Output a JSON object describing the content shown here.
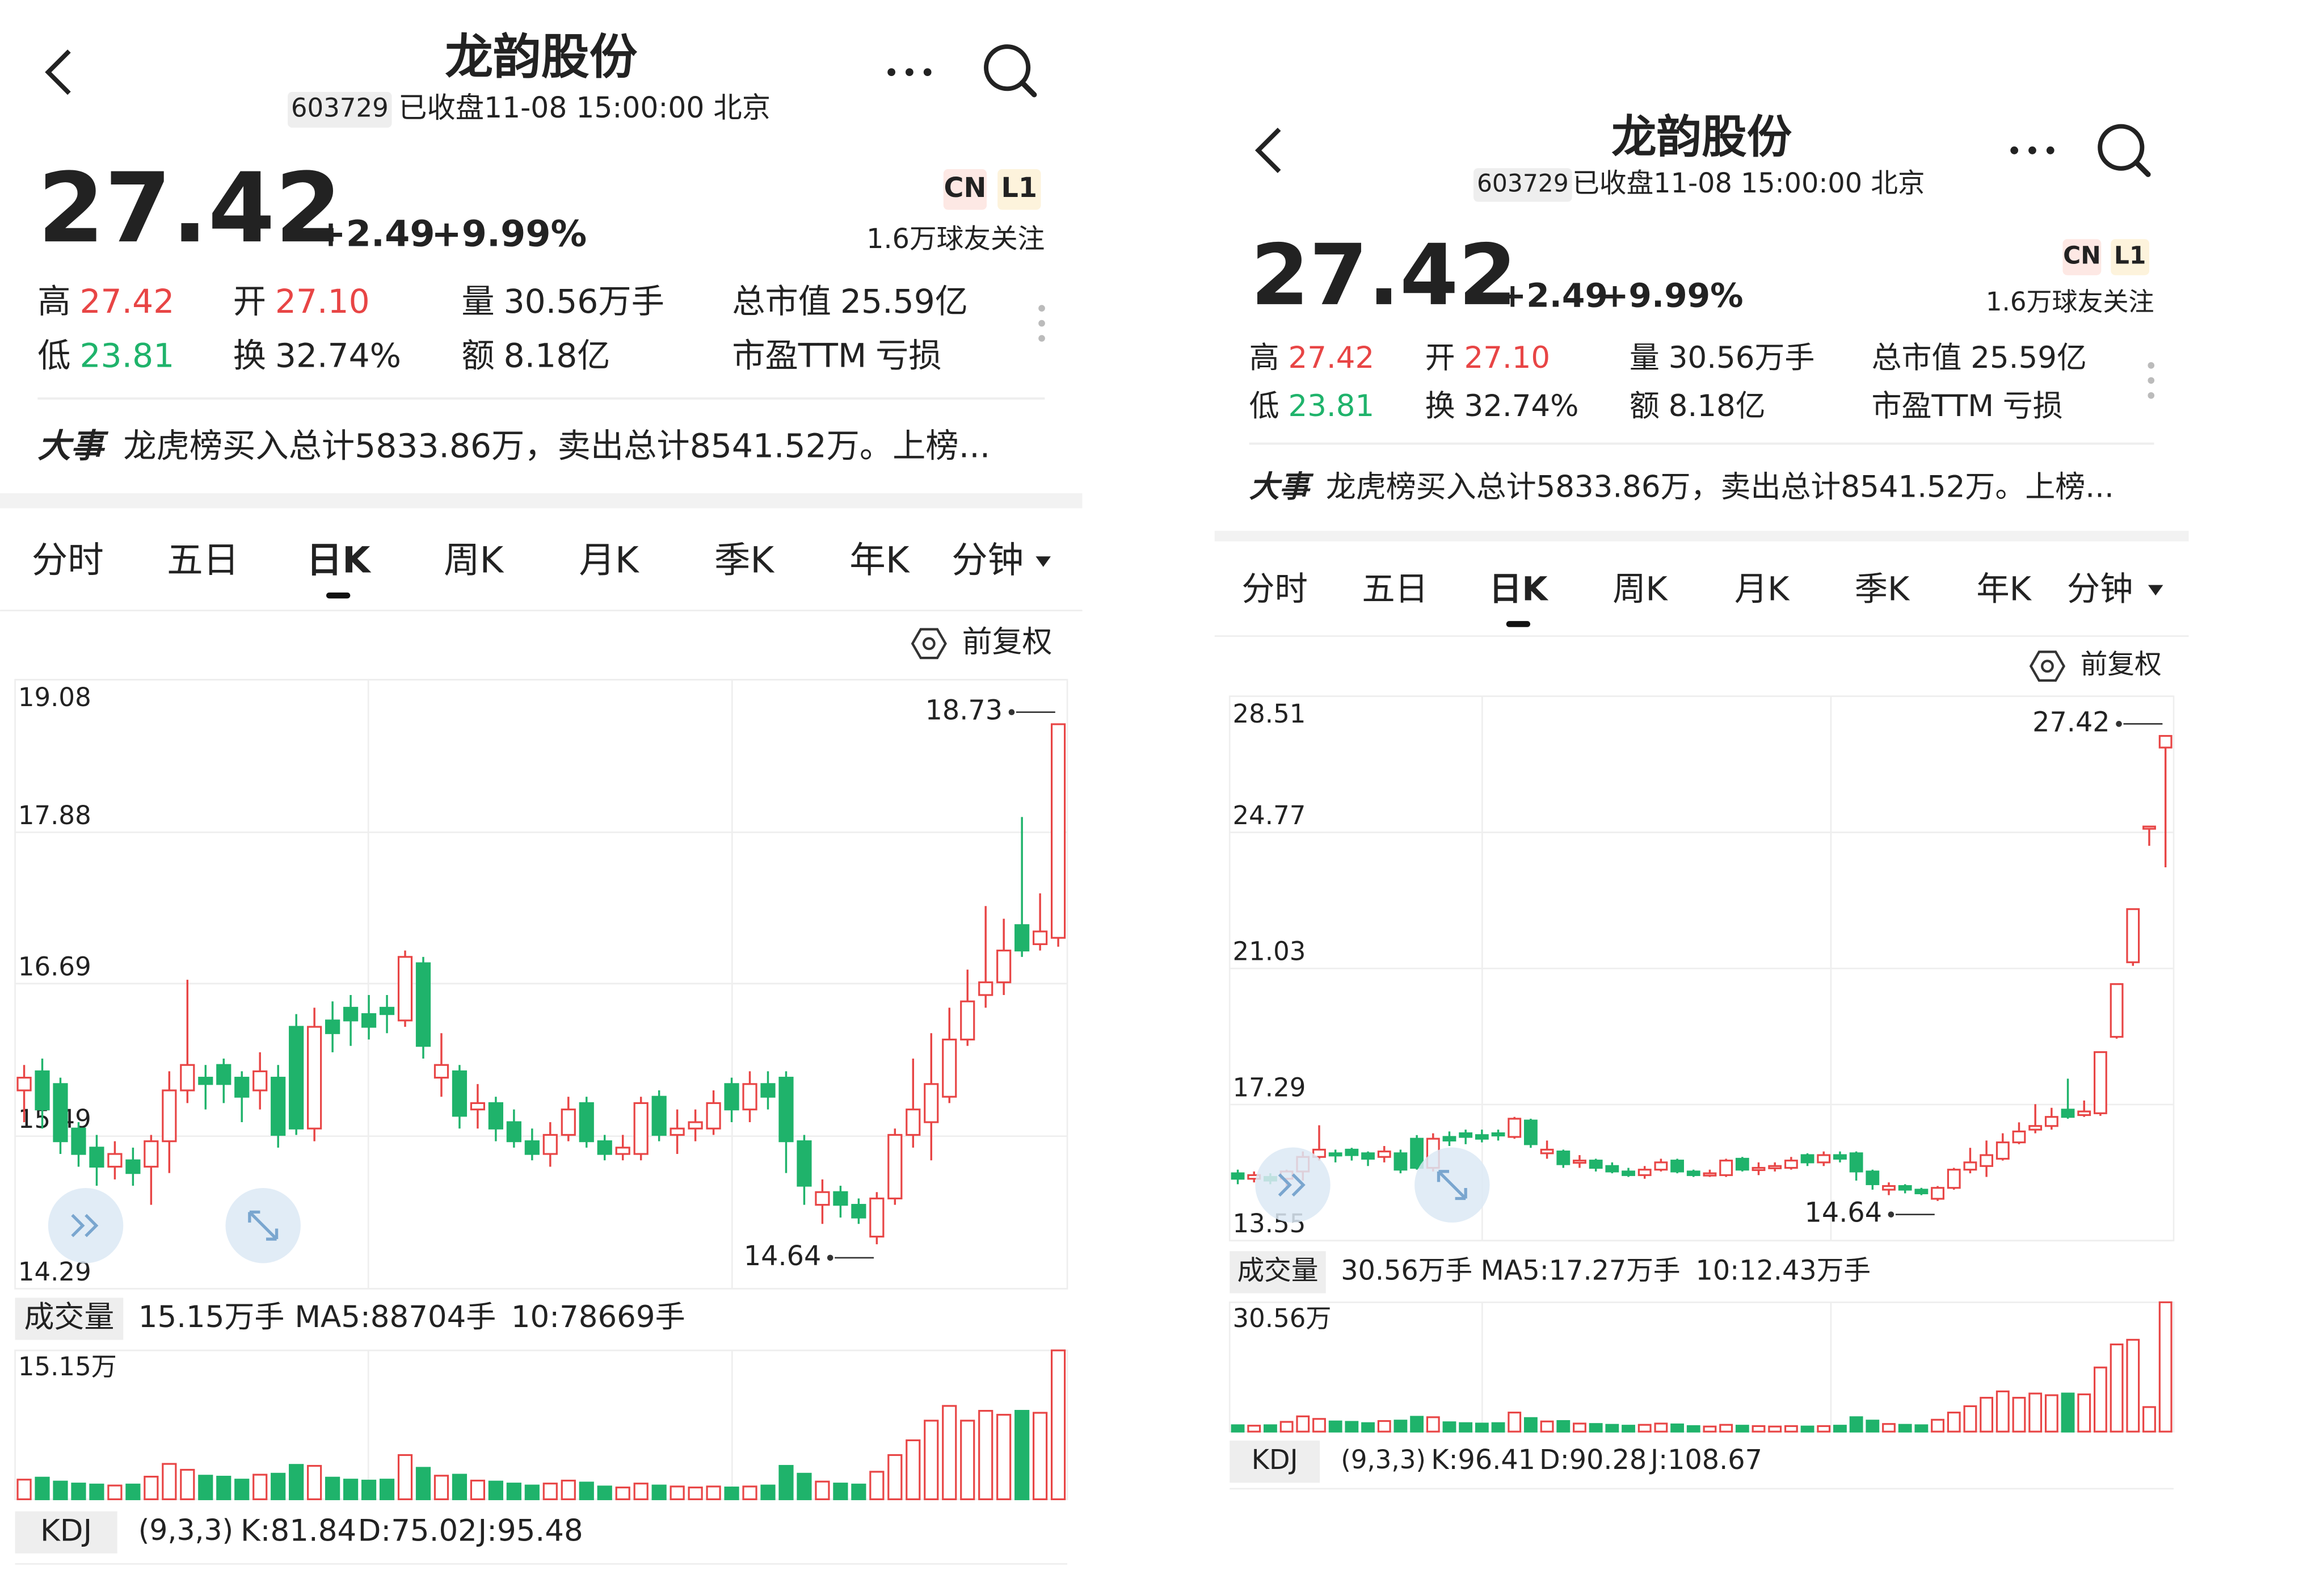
{
  "panels": [
    {
      "header": {
        "title": "龙韵股份",
        "code": "603729",
        "status": "已收盘11-08 15:00:00 北京"
      },
      "quote": {
        "price": "27.42",
        "change": "+2.49",
        "pct": "+9.99%",
        "badges": [
          "CN",
          "L1"
        ],
        "followers": "1.6万球友关注",
        "stats": [
          {
            "label": "高",
            "value": "27.42"
          },
          {
            "label": "开",
            "value": "27.10"
          },
          {
            "label": "量",
            "value": "30.56万手"
          },
          {
            "label": "总市值",
            "value": "25.59亿"
          },
          {
            "label": "低",
            "value": "23.81"
          },
          {
            "label": "换",
            "value": "32.74%"
          },
          {
            "label": "额",
            "value": "8.18亿"
          },
          {
            "label": "市盈TTM",
            "value": "亏损"
          }
        ]
      },
      "news": {
        "tag": "大事",
        "text": "龙虎榜买入总计5833.86万，卖出总计8541.52万。上榜..."
      },
      "tabs": [
        "分时",
        "五日",
        "日K",
        "周K",
        "月K",
        "季K",
        "年K",
        "分钟"
      ],
      "active_tab": 2,
      "adjust": "前复权",
      "chart_data": {
        "type": "candlestick",
        "up_color": "#e84545",
        "down_color": "#1fb36b",
        "ylim": [
          14.29,
          19.08
        ],
        "yticks": [
          19.08,
          17.88,
          16.69,
          15.49,
          14.29
        ],
        "high_label": 18.73,
        "low_label": 14.64,
        "candles": [
          [
            15.85,
            15.95,
            16.05,
            15.6
          ],
          [
            16.0,
            15.7,
            16.1,
            15.55
          ],
          [
            15.9,
            15.45,
            15.95,
            15.35
          ],
          [
            15.55,
            15.35,
            15.6,
            15.25
          ],
          [
            15.4,
            15.25,
            15.5,
            15.1
          ],
          [
            15.25,
            15.35,
            15.45,
            15.15
          ],
          [
            15.3,
            15.2,
            15.4,
            15.1
          ],
          [
            15.25,
            15.45,
            15.5,
            14.95
          ],
          [
            15.45,
            15.85,
            16.0,
            15.2
          ],
          [
            15.85,
            16.05,
            16.72,
            15.75
          ],
          [
            15.95,
            15.9,
            16.05,
            15.7
          ],
          [
            16.05,
            15.9,
            16.1,
            15.75
          ],
          [
            15.95,
            15.8,
            16.0,
            15.6
          ],
          [
            15.85,
            16.0,
            16.15,
            15.7
          ],
          [
            15.95,
            15.5,
            16.05,
            15.4
          ],
          [
            16.35,
            15.55,
            16.45,
            15.5
          ],
          [
            15.55,
            16.35,
            16.5,
            15.45
          ],
          [
            16.4,
            16.3,
            16.55,
            16.15
          ],
          [
            16.5,
            16.4,
            16.6,
            16.2
          ],
          [
            16.45,
            16.35,
            16.6,
            16.25
          ],
          [
            16.5,
            16.45,
            16.6,
            16.3
          ],
          [
            16.4,
            16.9,
            16.95,
            16.35
          ],
          [
            16.85,
            16.2,
            16.9,
            16.1
          ],
          [
            15.95,
            16.05,
            16.3,
            15.8
          ],
          [
            16.0,
            15.65,
            16.05,
            15.55
          ],
          [
            15.7,
            15.75,
            15.9,
            15.55
          ],
          [
            15.75,
            15.55,
            15.8,
            15.45
          ],
          [
            15.6,
            15.45,
            15.7,
            15.4
          ],
          [
            15.45,
            15.35,
            15.55,
            15.3
          ],
          [
            15.35,
            15.5,
            15.6,
            15.25
          ],
          [
            15.5,
            15.7,
            15.8,
            15.45
          ],
          [
            15.75,
            15.45,
            15.8,
            15.4
          ],
          [
            15.45,
            15.35,
            15.5,
            15.3
          ],
          [
            15.35,
            15.4,
            15.5,
            15.3
          ],
          [
            15.35,
            15.75,
            15.8,
            15.3
          ],
          [
            15.8,
            15.5,
            15.85,
            15.45
          ],
          [
            15.5,
            15.55,
            15.7,
            15.35
          ],
          [
            15.55,
            15.6,
            15.7,
            15.45
          ],
          [
            15.55,
            15.75,
            15.85,
            15.5
          ],
          [
            15.9,
            15.7,
            15.95,
            15.6
          ],
          [
            15.7,
            15.9,
            16.0,
            15.6
          ],
          [
            15.9,
            15.8,
            16.0,
            15.7
          ],
          [
            15.95,
            15.45,
            16.0,
            15.2
          ],
          [
            15.45,
            15.1,
            15.5,
            14.95
          ],
          [
            14.95,
            15.05,
            15.15,
            14.8
          ],
          [
            15.05,
            14.95,
            15.1,
            14.85
          ],
          [
            14.95,
            14.85,
            15.0,
            14.8
          ],
          [
            14.7,
            15.0,
            15.05,
            14.64
          ],
          [
            15.0,
            15.5,
            15.55,
            14.95
          ],
          [
            15.5,
            15.7,
            16.1,
            15.4
          ],
          [
            15.6,
            15.9,
            16.3,
            15.3
          ],
          [
            15.8,
            16.25,
            16.5,
            15.75
          ],
          [
            16.25,
            16.55,
            16.8,
            16.2
          ],
          [
            16.6,
            16.7,
            17.3,
            16.5
          ],
          [
            16.7,
            16.95,
            17.2,
            16.6
          ],
          [
            17.15,
            16.95,
            18.0,
            16.9
          ],
          [
            17.0,
            17.1,
            17.4,
            16.95
          ],
          [
            17.05,
            18.73,
            18.73,
            16.98
          ]
        ],
        "volume": {
          "title": "成交量",
          "current": "15.15万手",
          "ma5": "MA5:88704手",
          "ma10": "10:78669手",
          "ylim": [
            0,
            15.15
          ],
          "yticks": [
            {
              "value": 15.15,
              "label": "15.15万"
            }
          ],
          "values": [
            2.0,
            2.2,
            1.8,
            1.6,
            1.5,
            1.4,
            1.5,
            2.3,
            3.6,
            3.0,
            2.4,
            2.3,
            2.0,
            2.5,
            2.6,
            3.5,
            3.4,
            2.2,
            2.0,
            1.9,
            2.0,
            4.5,
            3.2,
            2.4,
            2.5,
            1.9,
            1.8,
            1.6,
            1.4,
            1.6,
            1.9,
            1.7,
            1.3,
            1.2,
            1.6,
            1.4,
            1.3,
            1.2,
            1.3,
            1.2,
            1.3,
            1.4,
            3.4,
            2.6,
            1.8,
            1.6,
            1.5,
            2.8,
            4.5,
            6.0,
            8.0,
            9.5,
            8.0,
            9.0,
            8.6,
            9.0,
            8.8,
            15.15
          ]
        },
        "kdj": {
          "title": "KDJ",
          "params": "(9,3,3)",
          "k": "K:81.84",
          "d": "D:75.02",
          "j": "J:95.48"
        }
      }
    },
    {
      "header": {
        "title": "龙韵股份",
        "code": "603729",
        "status": "已收盘11-08 15:00:00 北京"
      },
      "quote": {
        "price": "27.42",
        "change": "+2.49",
        "pct": "+9.99%",
        "badges": [
          "CN",
          "L1"
        ],
        "followers": "1.6万球友关注",
        "stats": [
          {
            "label": "高",
            "value": "27.42"
          },
          {
            "label": "开",
            "value": "27.10"
          },
          {
            "label": "量",
            "value": "30.56万手"
          },
          {
            "label": "总市值",
            "value": "25.59亿"
          },
          {
            "label": "低",
            "value": "23.81"
          },
          {
            "label": "换",
            "value": "32.74%"
          },
          {
            "label": "额",
            "value": "8.18亿"
          },
          {
            "label": "市盈TTM",
            "value": "亏损"
          }
        ]
      },
      "news": {
        "tag": "大事",
        "text": "龙虎榜买入总计5833.86万，卖出总计8541.52万。上榜..."
      },
      "tabs": [
        "分时",
        "五日",
        "日K",
        "周K",
        "月K",
        "季K",
        "年K",
        "分钟"
      ],
      "active_tab": 2,
      "adjust": "前复权",
      "chart_data": {
        "type": "candlestick",
        "up_color": "#e84545",
        "down_color": "#1fb36b",
        "ylim": [
          13.55,
          28.51
        ],
        "yticks": [
          28.51,
          24.77,
          21.03,
          17.29,
          13.55
        ],
        "high_label": 27.42,
        "low_label": 14.64,
        "candles": [
          [
            15.4,
            15.25,
            15.5,
            15.1
          ],
          [
            15.25,
            15.35,
            15.45,
            15.15
          ],
          [
            15.3,
            15.2,
            15.4,
            15.1
          ],
          [
            15.25,
            15.45,
            15.5,
            14.95
          ],
          [
            15.45,
            15.85,
            16.0,
            15.2
          ],
          [
            15.85,
            16.05,
            16.72,
            15.75
          ],
          [
            15.95,
            15.9,
            16.05,
            15.7
          ],
          [
            16.05,
            15.9,
            16.1,
            15.75
          ],
          [
            15.95,
            15.8,
            16.0,
            15.6
          ],
          [
            15.85,
            16.0,
            16.15,
            15.7
          ],
          [
            15.95,
            15.5,
            16.05,
            15.4
          ],
          [
            16.35,
            15.55,
            16.45,
            15.5
          ],
          [
            15.55,
            16.35,
            16.5,
            15.45
          ],
          [
            16.4,
            16.3,
            16.55,
            16.15
          ],
          [
            16.5,
            16.4,
            16.6,
            16.2
          ],
          [
            16.45,
            16.35,
            16.6,
            16.25
          ],
          [
            16.5,
            16.45,
            16.6,
            16.3
          ],
          [
            16.4,
            16.9,
            16.95,
            16.35
          ],
          [
            16.85,
            16.2,
            16.9,
            16.1
          ],
          [
            15.95,
            16.05,
            16.3,
            15.8
          ],
          [
            16.0,
            15.65,
            16.05,
            15.55
          ],
          [
            15.7,
            15.75,
            15.9,
            15.55
          ],
          [
            15.75,
            15.55,
            15.8,
            15.45
          ],
          [
            15.6,
            15.45,
            15.7,
            15.4
          ],
          [
            15.45,
            15.35,
            15.55,
            15.3
          ],
          [
            15.35,
            15.5,
            15.6,
            15.25
          ],
          [
            15.5,
            15.7,
            15.8,
            15.45
          ],
          [
            15.75,
            15.45,
            15.8,
            15.4
          ],
          [
            15.45,
            15.35,
            15.5,
            15.3
          ],
          [
            15.35,
            15.4,
            15.5,
            15.3
          ],
          [
            15.35,
            15.75,
            15.8,
            15.3
          ],
          [
            15.8,
            15.5,
            15.85,
            15.45
          ],
          [
            15.5,
            15.55,
            15.7,
            15.35
          ],
          [
            15.55,
            15.6,
            15.7,
            15.45
          ],
          [
            15.55,
            15.75,
            15.85,
            15.5
          ],
          [
            15.9,
            15.7,
            15.95,
            15.6
          ],
          [
            15.7,
            15.9,
            16.0,
            15.6
          ],
          [
            15.9,
            15.8,
            16.0,
            15.7
          ],
          [
            15.95,
            15.45,
            16.0,
            15.2
          ],
          [
            15.45,
            15.1,
            15.5,
            14.95
          ],
          [
            14.95,
            15.05,
            15.15,
            14.8
          ],
          [
            15.05,
            14.95,
            15.1,
            14.85
          ],
          [
            14.95,
            14.85,
            15.0,
            14.8
          ],
          [
            14.7,
            15.0,
            15.05,
            14.64
          ],
          [
            15.0,
            15.5,
            15.55,
            14.95
          ],
          [
            15.5,
            15.7,
            16.1,
            15.4
          ],
          [
            15.6,
            15.9,
            16.3,
            15.3
          ],
          [
            15.8,
            16.25,
            16.5,
            15.75
          ],
          [
            16.25,
            16.55,
            16.8,
            16.2
          ],
          [
            16.6,
            16.7,
            17.3,
            16.5
          ],
          [
            16.7,
            16.95,
            17.2,
            16.6
          ],
          [
            17.15,
            16.95,
            18.0,
            16.9
          ],
          [
            17.0,
            17.1,
            17.4,
            16.95
          ],
          [
            17.05,
            18.73,
            18.73,
            16.98
          ],
          [
            19.15,
            20.6,
            20.6,
            19.1
          ],
          [
            21.2,
            22.66,
            22.66,
            21.1
          ],
          [
            24.93,
            24.93,
            24.93,
            24.4
          ],
          [
            27.1,
            27.42,
            27.42,
            23.81
          ]
        ],
        "volume": {
          "title": "成交量",
          "current": "30.56万手",
          "ma5": "MA5:17.27万手",
          "ma10": "10:12.43万手",
          "ylim": [
            0,
            30.56
          ],
          "yticks": [
            {
              "value": 30.56,
              "label": "30.56万"
            }
          ],
          "values": [
            1.5,
            1.4,
            1.5,
            2.3,
            3.6,
            3.0,
            2.4,
            2.3,
            2.0,
            2.5,
            2.6,
            3.5,
            3.4,
            2.2,
            2.0,
            1.9,
            2.0,
            4.5,
            3.2,
            2.4,
            2.5,
            1.9,
            1.8,
            1.6,
            1.4,
            1.6,
            1.9,
            1.7,
            1.3,
            1.2,
            1.6,
            1.4,
            1.3,
            1.2,
            1.3,
            1.2,
            1.3,
            1.4,
            3.4,
            2.6,
            1.8,
            1.6,
            1.5,
            2.8,
            4.5,
            6.0,
            8.0,
            9.5,
            8.0,
            9.0,
            8.6,
            9.0,
            8.8,
            15.15,
            20.6,
            21.7,
            5.8,
            30.56
          ]
        },
        "kdj": {
          "title": "KDJ",
          "params": "(9,3,3)",
          "k": "K:96.41",
          "d": "D:90.28",
          "j": "J:108.67"
        }
      }
    }
  ]
}
